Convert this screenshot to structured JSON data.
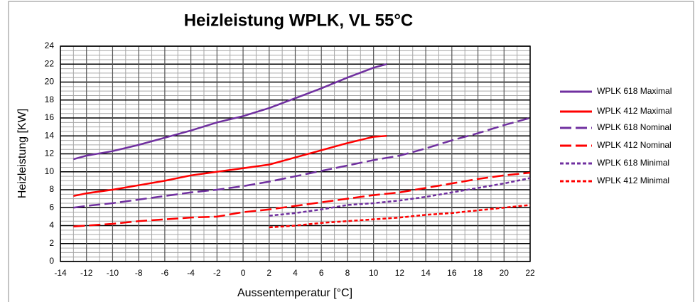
{
  "chart_data": {
    "type": "line",
    "title": "Heizleistung WPLK,  VL 55°C",
    "xlabel": "Aussentemperatur [°C]",
    "ylabel": "Heizleistung [KW]",
    "x": [
      -13,
      -12,
      -10,
      -8,
      -6,
      -4,
      -2,
      0,
      2,
      4,
      6,
      8,
      10,
      11,
      12,
      14,
      16,
      18,
      20,
      22
    ],
    "series": [
      {
        "name": "WPLK 618 Maximal",
        "color": "#7030a0",
        "dash": "solid",
        "values": [
          11.4,
          11.8,
          12.3,
          13.0,
          13.8,
          14.6,
          15.5,
          16.2,
          17.1,
          18.2,
          19.3,
          20.5,
          21.6,
          22,
          null,
          null,
          null,
          null,
          null,
          null
        ]
      },
      {
        "name": "WPLK 412 Maximal",
        "color": "#ff0000",
        "dash": "solid",
        "values": [
          7.3,
          7.6,
          8.0,
          8.5,
          9.0,
          9.6,
          10.0,
          10.4,
          10.8,
          11.6,
          12.4,
          13.2,
          13.9,
          14.0,
          null,
          null,
          null,
          null,
          null,
          null
        ]
      },
      {
        "name": "WPLK 618 Nominal",
        "color": "#7030a0",
        "dash": "dashed",
        "values": [
          6.0,
          6.2,
          6.5,
          6.9,
          7.3,
          7.7,
          8.0,
          8.4,
          8.9,
          9.5,
          10.1,
          10.7,
          11.3,
          11.55,
          11.8,
          12.6,
          13.5,
          14.3,
          15.2,
          16.0
        ]
      },
      {
        "name": "WPLK 412 Nominal",
        "color": "#ff0000",
        "dash": "dashed",
        "values": [
          3.9,
          4.0,
          4.2,
          4.5,
          4.7,
          4.9,
          5.0,
          5.5,
          5.8,
          6.2,
          6.6,
          7.0,
          7.4,
          7.55,
          7.7,
          8.2,
          8.7,
          9.2,
          9.6,
          9.9
        ]
      },
      {
        "name": "WPLK 618 Minimal",
        "color": "#7030a0",
        "dash": "dotted",
        "values": [
          null,
          null,
          null,
          null,
          null,
          null,
          null,
          null,
          5.1,
          5.4,
          5.8,
          6.3,
          6.5,
          6.65,
          6.8,
          7.2,
          7.7,
          8.2,
          8.7,
          9.3
        ]
      },
      {
        "name": "WPLK 412 Minimal",
        "color": "#ff0000",
        "dash": "dotted",
        "values": [
          null,
          null,
          null,
          null,
          null,
          null,
          null,
          null,
          3.8,
          4.0,
          4.3,
          4.5,
          4.7,
          4.8,
          4.9,
          5.2,
          5.4,
          5.7,
          6.0,
          6.3
        ]
      }
    ],
    "xlim": [
      -14,
      22
    ],
    "xticks": [
      -14,
      -12,
      -10,
      -8,
      -6,
      -4,
      -2,
      0,
      2,
      4,
      6,
      8,
      10,
      12,
      14,
      16,
      18,
      20,
      22
    ],
    "ylim": [
      0,
      24
    ],
    "yticks": [
      0,
      2,
      4,
      6,
      8,
      10,
      12,
      14,
      16,
      18,
      20,
      22,
      24
    ],
    "grid": true,
    "x_minor_divisions": 2,
    "y_minor_divisions": 4,
    "legend": "right"
  }
}
